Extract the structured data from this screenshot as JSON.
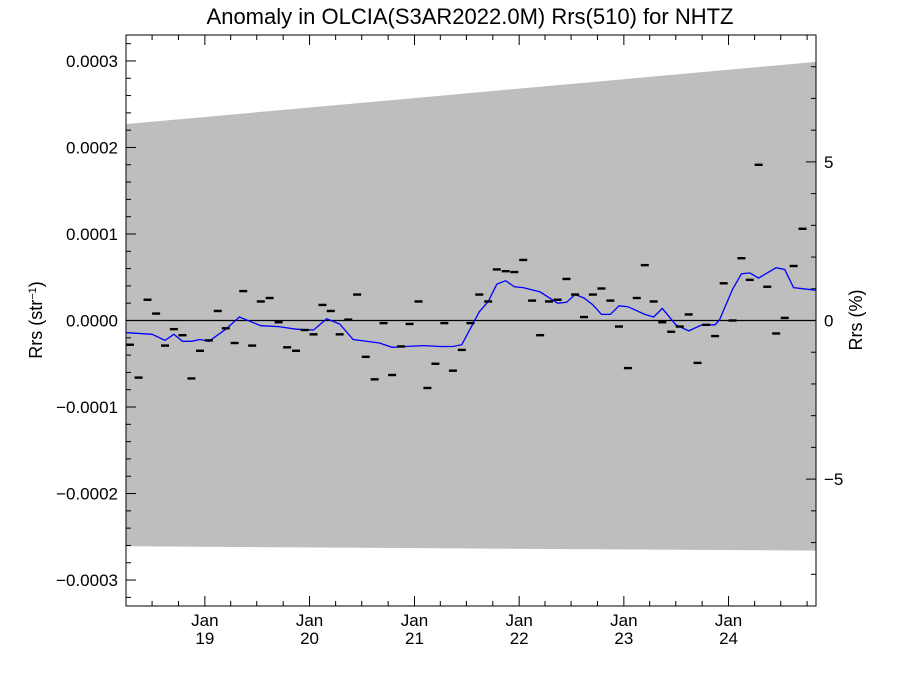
{
  "chart_data": {
    "type": "scatter",
    "title": "Anomaly in OLCIA(S3AR2022.0M) Rrs(510) for NHTZ",
    "ylabel": "Rrs (str⁻¹)",
    "y2label": "Rrs (%)",
    "xlim": [
      "2018-04-01",
      "2024-11-01"
    ],
    "ylim": [
      -0.00033,
      0.00033
    ],
    "y2lim": [
      -9.0,
      9.0
    ],
    "xticks": [
      {
        "date": "2019-01-01",
        "month": "Jan",
        "year": "19"
      },
      {
        "date": "2020-01-01",
        "month": "Jan",
        "year": "20"
      },
      {
        "date": "2021-01-01",
        "month": "Jan",
        "year": "21"
      },
      {
        "date": "2022-01-01",
        "month": "Jan",
        "year": "22"
      },
      {
        "date": "2023-01-01",
        "month": "Jan",
        "year": "23"
      },
      {
        "date": "2024-01-01",
        "month": "Jan",
        "year": "24"
      }
    ],
    "yticks": [
      {
        "value": 0.0003,
        "label": "0.0003"
      },
      {
        "value": 0.0002,
        "label": "0.0002"
      },
      {
        "value": 0.0001,
        "label": "0.0001"
      },
      {
        "value": 0.0,
        "label": "0.0000"
      },
      {
        "value": -0.0001,
        "label": "−0.0001"
      },
      {
        "value": -0.0002,
        "label": "−0.0002"
      },
      {
        "value": -0.0003,
        "label": "−0.0003"
      }
    ],
    "y2ticks": [
      {
        "value": 5,
        "label": "5"
      },
      {
        "value": 0,
        "label": "0"
      },
      {
        "value": -5,
        "label": "−5"
      }
    ],
    "uncertainty_band": {
      "x": [
        "2018-04-01",
        "2024-11-01"
      ],
      "upper": [
        0.000227,
        0.000299
      ],
      "lower": [
        -0.000261,
        -0.000266
      ],
      "color": "#bebebe"
    },
    "zero_line": 0.0,
    "series": [
      {
        "kind": "monthly-points",
        "color": "#000000",
        "points": [
          [
            "2018-04-15",
            -2.8e-05
          ],
          [
            "2018-05-15",
            -6.6e-05
          ],
          [
            "2018-06-15",
            2.4e-05
          ],
          [
            "2018-07-15",
            8e-06
          ],
          [
            "2018-08-15",
            -2.9e-05
          ],
          [
            "2018-09-15",
            -1e-05
          ],
          [
            "2018-10-15",
            -1.7e-05
          ],
          [
            "2018-11-15",
            -6.7e-05
          ],
          [
            "2018-12-15",
            -3.5e-05
          ],
          [
            "2019-01-15",
            -2.3e-05
          ],
          [
            "2019-02-15",
            1.1e-05
          ],
          [
            "2019-03-15",
            -9e-06
          ],
          [
            "2019-04-15",
            -2.6e-05
          ],
          [
            "2019-05-15",
            3.4e-05
          ],
          [
            "2019-06-15",
            -2.9e-05
          ],
          [
            "2019-07-15",
            2.2e-05
          ],
          [
            "2019-08-15",
            2.6e-05
          ],
          [
            "2019-09-15",
            -2e-06
          ],
          [
            "2019-10-15",
            -3.1e-05
          ],
          [
            "2019-11-15",
            -3.5e-05
          ],
          [
            "2019-12-15",
            -1.1e-05
          ],
          [
            "2020-01-15",
            -1.6e-05
          ],
          [
            "2020-02-15",
            1.8e-05
          ],
          [
            "2020-03-15",
            1.1e-05
          ],
          [
            "2020-04-15",
            -1.6e-05
          ],
          [
            "2020-05-15",
            1e-06
          ],
          [
            "2020-06-15",
            3e-05
          ],
          [
            "2020-07-15",
            -4.2e-05
          ],
          [
            "2020-08-15",
            -6.8e-05
          ],
          [
            "2020-09-15",
            -3e-06
          ],
          [
            "2020-10-15",
            -6.3e-05
          ],
          [
            "2020-11-15",
            -3e-05
          ],
          [
            "2020-12-15",
            -4e-06
          ],
          [
            "2021-01-15",
            2.2e-05
          ],
          [
            "2021-02-15",
            -7.8e-05
          ],
          [
            "2021-03-15",
            -5e-05
          ],
          [
            "2021-04-15",
            -3e-06
          ],
          [
            "2021-05-15",
            -5.8e-05
          ],
          [
            "2021-06-15",
            -3.4e-05
          ],
          [
            "2021-07-15",
            -3e-06
          ],
          [
            "2021-08-15",
            3e-05
          ],
          [
            "2021-09-15",
            2.2e-05
          ],
          [
            "2021-10-15",
            5.9e-05
          ],
          [
            "2021-11-15",
            5.7e-05
          ],
          [
            "2021-12-15",
            5.6e-05
          ],
          [
            "2022-01-15",
            7e-05
          ],
          [
            "2022-02-15",
            2.3e-05
          ],
          [
            "2022-03-15",
            -1.7e-05
          ],
          [
            "2022-04-15",
            2.2e-05
          ],
          [
            "2022-05-15",
            2.4e-05
          ],
          [
            "2022-06-15",
            4.8e-05
          ],
          [
            "2022-07-15",
            3e-05
          ],
          [
            "2022-08-15",
            4e-06
          ],
          [
            "2022-09-15",
            3e-05
          ],
          [
            "2022-10-15",
            3.7e-05
          ],
          [
            "2022-11-15",
            2.3e-05
          ],
          [
            "2022-12-15",
            -7e-06
          ],
          [
            "2023-01-15",
            -5.5e-05
          ],
          [
            "2023-02-15",
            2.6e-05
          ],
          [
            "2023-03-15",
            6.4e-05
          ],
          [
            "2023-04-15",
            2.2e-05
          ],
          [
            "2023-05-15",
            -2e-06
          ],
          [
            "2023-06-15",
            -1.3e-05
          ],
          [
            "2023-07-15",
            -7e-06
          ],
          [
            "2023-08-15",
            7e-06
          ],
          [
            "2023-09-15",
            -4.9e-05
          ],
          [
            "2023-10-15",
            -5e-06
          ],
          [
            "2023-11-15",
            -1.8e-05
          ],
          [
            "2023-12-15",
            4.3e-05
          ],
          [
            "2024-01-15",
            0.0
          ],
          [
            "2024-02-15",
            7.2e-05
          ],
          [
            "2024-03-15",
            4.7e-05
          ],
          [
            "2024-04-15",
            0.00018
          ],
          [
            "2024-05-15",
            3.9e-05
          ],
          [
            "2024-06-15",
            -1.5e-05
          ],
          [
            "2024-07-15",
            3e-06
          ],
          [
            "2024-08-15",
            6.3e-05
          ],
          [
            "2024-09-15",
            0.000106
          ]
        ]
      },
      {
        "kind": "running-mean",
        "color": "#0000ff",
        "points": [
          [
            "2018-04-01",
            -1.4e-05
          ],
          [
            "2018-07-01",
            -1.6e-05
          ],
          [
            "2018-08-15",
            -2.3e-05
          ],
          [
            "2018-09-15",
            -1.6e-05
          ],
          [
            "2018-10-15",
            -2.4e-05
          ],
          [
            "2018-11-15",
            -2.4e-05
          ],
          [
            "2018-12-15",
            -2.2e-05
          ],
          [
            "2019-01-15",
            -2.4e-05
          ],
          [
            "2019-03-15",
            -1e-05
          ],
          [
            "2019-05-01",
            4e-06
          ],
          [
            "2019-07-15",
            -6e-06
          ],
          [
            "2019-09-15",
            -7e-06
          ],
          [
            "2019-11-15",
            -1e-05
          ],
          [
            "2020-01-15",
            -1.1e-05
          ],
          [
            "2020-03-01",
            2e-06
          ],
          [
            "2020-04-15",
            -4e-06
          ],
          [
            "2020-06-01",
            -2.2e-05
          ],
          [
            "2020-09-01",
            -2.6e-05
          ],
          [
            "2020-10-15",
            -3.1e-05
          ],
          [
            "2020-12-01",
            -3e-05
          ],
          [
            "2021-02-01",
            -2.9e-05
          ],
          [
            "2021-04-01",
            -3e-05
          ],
          [
            "2021-05-15",
            -3e-05
          ],
          [
            "2021-06-15",
            -2.8e-05
          ],
          [
            "2021-08-15",
            1e-05
          ],
          [
            "2021-09-15",
            2.2e-05
          ],
          [
            "2021-10-15",
            4.2e-05
          ],
          [
            "2021-11-15",
            4.6e-05
          ],
          [
            "2021-12-15",
            3.9e-05
          ],
          [
            "2022-01-15",
            3.8e-05
          ],
          [
            "2022-03-15",
            3.3e-05
          ],
          [
            "2022-05-15",
            2e-05
          ],
          [
            "2022-06-15",
            2.1e-05
          ],
          [
            "2022-07-15",
            3e-05
          ],
          [
            "2022-08-15",
            2.6e-05
          ],
          [
            "2022-09-15",
            1.8e-05
          ],
          [
            "2022-10-15",
            7e-06
          ],
          [
            "2022-11-15",
            7e-06
          ],
          [
            "2022-12-15",
            1.7e-05
          ],
          [
            "2023-01-15",
            1.6e-05
          ],
          [
            "2023-03-15",
            7e-06
          ],
          [
            "2023-04-15",
            4e-06
          ],
          [
            "2023-05-15",
            1.4e-05
          ],
          [
            "2023-07-01",
            -5e-06
          ],
          [
            "2023-08-15",
            -1.2e-05
          ],
          [
            "2023-10-01",
            -5e-06
          ],
          [
            "2023-11-15",
            -5e-06
          ],
          [
            "2023-12-01",
            1e-06
          ],
          [
            "2024-01-15",
            3.6e-05
          ],
          [
            "2024-02-15",
            5.4e-05
          ],
          [
            "2024-03-15",
            5.5e-05
          ],
          [
            "2024-04-15",
            4.9e-05
          ],
          [
            "2024-05-15",
            5.5e-05
          ],
          [
            "2024-06-15",
            6.1e-05
          ],
          [
            "2024-07-15",
            5.9e-05
          ],
          [
            "2024-08-15",
            3.8e-05
          ],
          [
            "2024-10-31",
            3.5e-05
          ]
        ]
      }
    ]
  }
}
